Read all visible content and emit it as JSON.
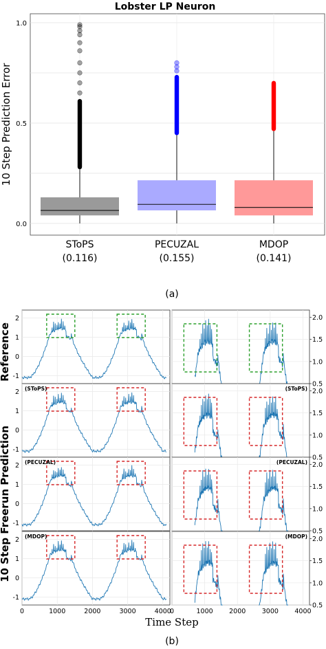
{
  "chart_data": [
    {
      "type": "box",
      "title": "Lobster LP Neuron",
      "ylabel": "10 Step Prediction Error",
      "ylim": [
        0,
        1.0
      ],
      "yticks": [
        "0.0",
        "0.5",
        "1.0"
      ],
      "grid": true,
      "categories": [
        "SToPS",
        "PECUZAL",
        "MDOP"
      ],
      "category_sublabels": [
        "(0.116)",
        "(0.155)",
        "(0.141)"
      ],
      "colors": [
        "#9a9a9a",
        "#aaaaff",
        "#ff9999"
      ],
      "outlier_colors": [
        "#000000",
        "#0000ff",
        "#ff0000"
      ],
      "series": [
        {
          "median": 0.065,
          "q1": 0.04,
          "q3": 0.13,
          "whisker_low": 0.0,
          "whisker_high": 0.27,
          "outliers_dense_to": 0.62,
          "outliers_sparse": [
            0.65,
            0.7,
            0.75,
            0.8,
            0.86,
            0.9,
            0.94,
            0.96,
            0.98,
            0.99
          ]
        },
        {
          "median": 0.095,
          "q1": 0.065,
          "q3": 0.215,
          "whisker_low": 0.0,
          "whisker_high": 0.44,
          "outliers_dense_to": 0.74,
          "outliers_sparse": [
            0.76,
            0.78,
            0.8
          ]
        },
        {
          "median": 0.08,
          "q1": 0.04,
          "q3": 0.215,
          "whisker_low": 0.0,
          "whisker_high": 0.46,
          "outliers_dense_to": 0.71,
          "outliers_sparse": []
        }
      ]
    },
    {
      "type": "line",
      "panel_letter": "(a)",
      "xlabel": "Time Step",
      "ylabel_top": "Reference",
      "ylabel_bottom": "10 Step Freerun Prediction",
      "rows": [
        "Reference",
        "(SToPS)",
        "(PECUZAL)",
        "(MDOP)"
      ],
      "left_xlim": [
        0,
        4200
      ],
      "left_xticks": [
        "0",
        "1000",
        "2000",
        "3000",
        "4000"
      ],
      "left_yticks": [
        "-1",
        "0",
        "1",
        "2"
      ],
      "left_ylim": [
        -1.2,
        2.2
      ],
      "right_xlim": [
        0,
        4200
      ],
      "right_xticks": [
        "0",
        "1000",
        "2000",
        "3000",
        "4000"
      ],
      "right_yticks": [
        "0.5",
        "1.0",
        "1.5",
        "2.0"
      ],
      "right_ylim": [
        0.5,
        2.1
      ],
      "highlight_windows_x": [
        [
          700,
          1500
        ],
        [
          2700,
          3500
        ]
      ],
      "box_colors": [
        "#2ca02c",
        "#d62728",
        "#d62728",
        "#d62728"
      ],
      "line_color": "#1f77b4",
      "panel_letter_b": "(b)"
    }
  ]
}
